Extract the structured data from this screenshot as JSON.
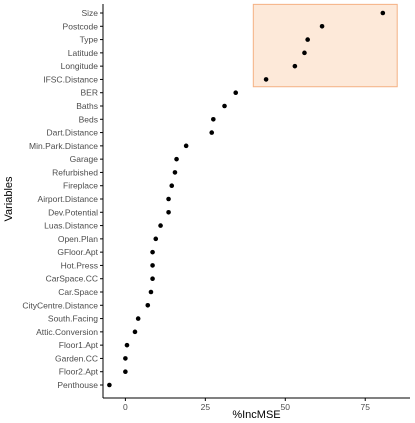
{
  "chart_data": {
    "type": "scatter",
    "title": "",
    "xlabel": "%IncMSE",
    "ylabel": "Variables",
    "xlim": [
      -7,
      89
    ],
    "xticks": [
      0,
      25,
      50,
      75
    ],
    "grid": false,
    "categories": [
      "Size",
      "Postcode",
      "Type",
      "Latitude",
      "Longitude",
      "IFSC.Distance",
      "BER",
      "Baths",
      "Beds",
      "Dart.Distance",
      "Min.Park.Distance",
      "Garage",
      "Refurbished",
      "Fireplace",
      "Airport.Distance",
      "Dev.Potential",
      "Luas.Distance",
      "Open.Plan",
      "GFloor.Apt",
      "Hot.Press",
      "CarSpace.CC",
      "Car.Space",
      "CityCentre.Distance",
      "South.Facing",
      "Attic.Conversion",
      "Floor1.Apt",
      "Garden.CC",
      "Floor2.Apt",
      "Penthouse"
    ],
    "values": [
      80.5,
      61.5,
      57,
      56,
      53,
      44,
      34.5,
      31,
      27.5,
      27,
      19,
      16,
      15.5,
      14.5,
      13.5,
      13.5,
      11,
      9.5,
      8.5,
      8.5,
      8.5,
      8,
      7,
      4,
      3,
      0.5,
      0,
      0,
      -5
    ],
    "highlight": {
      "from_category": "Size",
      "to_category": "IFSC.Distance",
      "x_range": [
        40,
        85
      ],
      "fill": "#fde9d9",
      "stroke": "#f4b183"
    },
    "colors": {
      "point": "#000000",
      "axis": "#000000",
      "tick_label": "#4d4d4d"
    }
  }
}
